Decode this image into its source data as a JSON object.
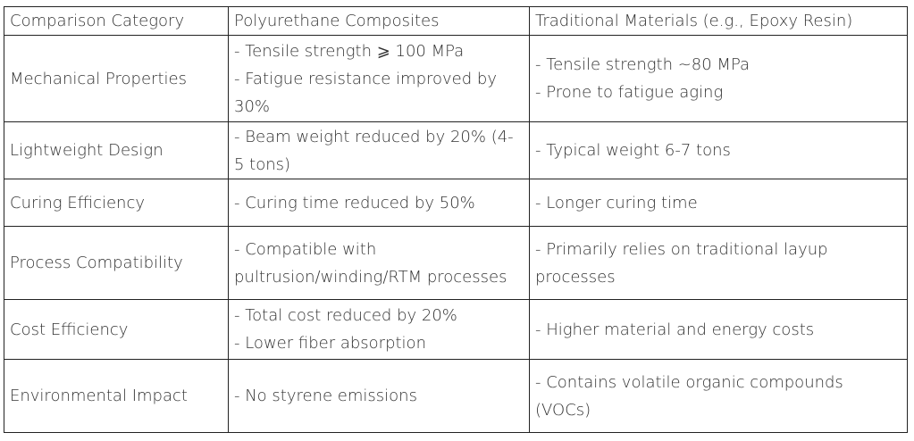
{
  "table": {
    "header": {
      "category": "Comparison Category",
      "polyurethane": "Polyurethane Composites",
      "traditional": "Traditional Materials (e.g., Epoxy Resin)"
    },
    "rows": [
      {
        "category": "Mechanical Properties",
        "polyurethane": [
          "- Tensile strength ⩾ 100 MPa",
          "- Fatigue resistance improved by 30%"
        ],
        "traditional": [
          "- Tensile strength ~80 MPa",
          "- Prone to fatigue aging"
        ]
      },
      {
        "category": "Lightweight Design",
        "polyurethane": [
          "- Beam weight reduced by 20% (4-5 tons)"
        ],
        "traditional": [
          "- Typical weight 6-7 tons"
        ]
      },
      {
        "category": "Curing Efficiency",
        "polyurethane": [
          "- Curing time reduced by 50%"
        ],
        "traditional": [
          "- Longer curing time"
        ]
      },
      {
        "category": "Process Compatibility",
        "polyurethane": [
          "- Compatible with pultrusion/winding/RTM processes"
        ],
        "traditional": [
          "- Primarily relies on traditional layup processes"
        ]
      },
      {
        "category": "Cost Efficiency",
        "polyurethane": [
          "- Total cost reduced by 20%",
          "- Lower fiber absorption"
        ],
        "traditional": [
          "- Higher material and energy costs"
        ]
      },
      {
        "category": "Environmental Impact",
        "polyurethane": [
          "- No styrene emissions"
        ],
        "traditional": [
          "- Contains volatile organic compounds (VOCs)"
        ]
      }
    ]
  }
}
